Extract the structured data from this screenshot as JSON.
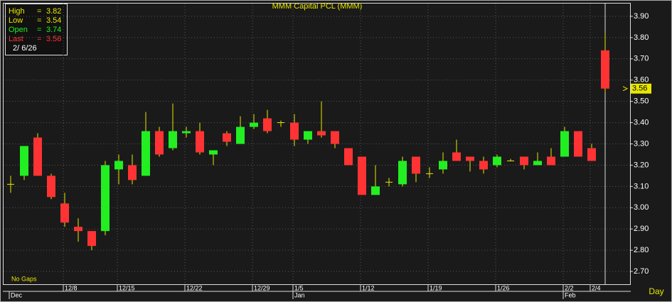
{
  "chart_data": {
    "type": "candlestick",
    "title": "MMM Capital PCL (MMM)",
    "note": "No Gaps",
    "period": "Day",
    "info": {
      "high_label": "High",
      "high": 3.82,
      "low_label": "Low",
      "low": 3.54,
      "open_label": "Open",
      "open": 3.74,
      "last_label": "Last",
      "last": 3.56,
      "date": "2/ 6/26",
      "eq": "="
    },
    "categories": [
      null,
      null,
      null,
      null,
      "12/8",
      null,
      null,
      null,
      "12/15",
      null,
      null,
      null,
      null,
      "12/22",
      null,
      null,
      null,
      null,
      "12/29",
      null,
      null,
      "1/5",
      null,
      null,
      null,
      null,
      "1/12",
      null,
      null,
      null,
      null,
      "1/19",
      null,
      null,
      null,
      null,
      "1/26",
      null,
      null,
      null,
      null,
      "2/2",
      null,
      "2/4",
      null
    ],
    "month_labels": [
      "Dec",
      null,
      null,
      null,
      null,
      null,
      null,
      null,
      null,
      null,
      null,
      null,
      null,
      null,
      null,
      null,
      null,
      null,
      null,
      null,
      null,
      "Jan",
      null,
      null,
      null,
      null,
      null,
      null,
      null,
      null,
      null,
      null,
      null,
      null,
      null,
      null,
      null,
      null,
      null,
      null,
      null,
      "Feb",
      null,
      null,
      null
    ],
    "open": [
      3.11,
      3.15,
      3.33,
      3.15,
      3.02,
      2.91,
      2.89,
      2.89,
      3.18,
      3.2,
      3.15,
      3.36,
      3.28,
      3.35,
      3.36,
      3.25,
      3.35,
      3.3,
      3.38,
      3.42,
      3.4,
      3.4,
      3.32,
      3.36,
      3.36,
      3.28,
      3.24,
      3.06,
      3.12,
      3.11,
      3.24,
      3.16,
      3.18,
      3.26,
      3.24,
      3.22,
      3.2,
      3.22,
      3.24,
      3.2,
      3.24,
      3.24,
      3.36,
      3.28,
      3.74
    ],
    "high": [
      3.15,
      3.29,
      3.35,
      3.16,
      3.07,
      2.95,
      2.89,
      3.22,
      3.25,
      3.25,
      3.45,
      3.38,
      3.49,
      3.38,
      3.4,
      3.27,
      3.36,
      3.43,
      3.44,
      3.46,
      3.41,
      3.44,
      3.36,
      3.5,
      3.36,
      3.28,
      3.24,
      3.2,
      3.14,
      3.24,
      3.24,
      3.19,
      3.26,
      3.32,
      3.24,
      3.24,
      3.25,
      3.23,
      3.24,
      3.26,
      3.28,
      3.38,
      3.36,
      3.3,
      3.82
    ],
    "low": [
      3.07,
      3.13,
      3.15,
      3.04,
      2.91,
      2.84,
      2.8,
      2.87,
      3.11,
      3.11,
      3.15,
      3.24,
      3.27,
      3.33,
      3.25,
      3.2,
      3.29,
      3.3,
      3.37,
      3.35,
      3.38,
      3.29,
      3.3,
      3.33,
      3.28,
      3.2,
      3.06,
      3.06,
      3.1,
      3.1,
      3.12,
      3.14,
      3.16,
      3.22,
      3.17,
      3.16,
      3.19,
      3.22,
      3.18,
      3.2,
      3.2,
      3.24,
      3.24,
      3.22,
      3.54
    ],
    "close": [
      3.11,
      3.29,
      3.15,
      3.05,
      2.93,
      2.89,
      2.82,
      3.2,
      3.22,
      3.13,
      3.36,
      3.25,
      3.36,
      3.36,
      3.26,
      3.27,
      3.31,
      3.38,
      3.4,
      3.36,
      3.4,
      3.32,
      3.36,
      3.34,
      3.3,
      3.2,
      3.06,
      3.1,
      3.12,
      3.22,
      3.16,
      3.16,
      3.22,
      3.22,
      3.22,
      3.18,
      3.24,
      3.22,
      3.2,
      3.22,
      3.2,
      3.36,
      3.24,
      3.22,
      3.56
    ],
    "up_color": "#22ee22",
    "down_color": "#ff3333",
    "doji_color": "#e8e800",
    "ylim": [
      2.64,
      3.96
    ],
    "yticks": [
      {
        "value": 2.7,
        "label": "2.70"
      },
      {
        "value": 2.8,
        "label": "2.80"
      },
      {
        "value": 2.9,
        "label": "2.90"
      },
      {
        "value": 3.0,
        "label": "3.00"
      },
      {
        "value": 3.1,
        "label": "3.10"
      },
      {
        "value": 3.2,
        "label": "3.20"
      },
      {
        "value": 3.3,
        "label": "3.30"
      },
      {
        "value": 3.4,
        "label": "3.40"
      },
      {
        "value": 3.5,
        "label": "3.50"
      },
      {
        "value": 3.6,
        "label": "3.60"
      },
      {
        "value": 3.7,
        "label": "3.70"
      },
      {
        "value": 3.8,
        "label": "3.80"
      },
      {
        "value": 3.9,
        "label": "3.90"
      }
    ],
    "grid": true
  }
}
